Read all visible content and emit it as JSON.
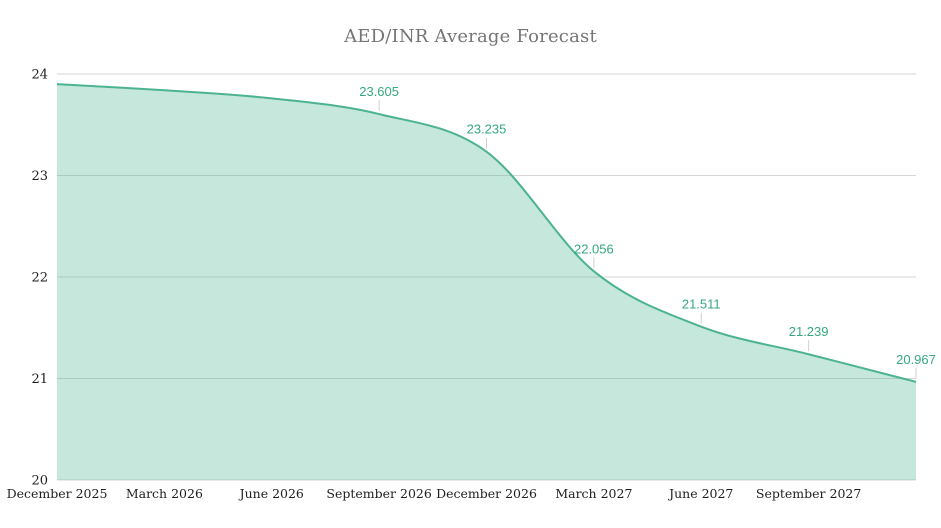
{
  "chart": {
    "title": "AED/INR Average Forecast"
  },
  "chart_data": {
    "type": "area",
    "title": "AED/INR Average Forecast",
    "xlabel": "",
    "ylabel": "",
    "x_tick_labels": [
      "December 2025",
      "March 2026",
      "June 2026",
      "September 2026",
      "December 2026",
      "March 2027",
      "June 2027",
      "September 2027"
    ],
    "values": [
      23.9,
      23.84,
      23.76,
      23.605,
      23.235,
      22.056,
      21.511,
      21.239,
      20.967
    ],
    "data_labels": [
      "",
      "",
      "",
      "23.605",
      "23.235",
      "22.056",
      "21.511",
      "21.239",
      "20.967"
    ],
    "y_ticks": [
      20,
      21,
      22,
      23,
      24
    ],
    "ylim": [
      20,
      24
    ],
    "grid": "horizontal",
    "legend": "none",
    "smooth": true,
    "colors": {
      "line": "#4cb391",
      "fill": "#4cb391",
      "fill_opacity": 0.32,
      "data_label_text": "#35a97e",
      "leader_line": "#cfcfcf",
      "gridline": "#d6d6d6",
      "axis_text": "#1f1f1f",
      "title_text": "#757575",
      "background": "#ffffff"
    }
  }
}
